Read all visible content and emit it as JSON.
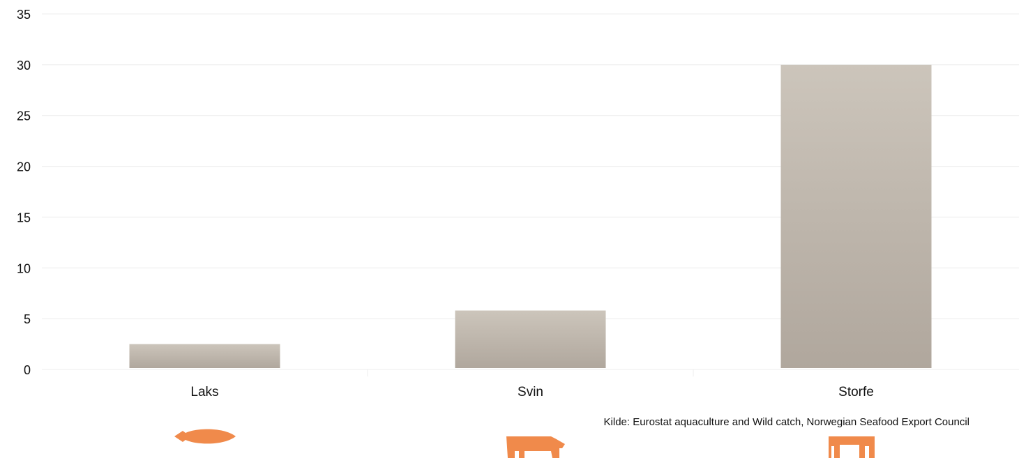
{
  "chart_data": {
    "type": "bar",
    "categories": [
      "Laks",
      "Svin",
      "Storfe"
    ],
    "values": [
      2.5,
      5.8,
      30
    ],
    "ylim": [
      0,
      35
    ],
    "yticks": [
      0,
      5,
      10,
      15,
      20,
      25,
      30,
      35
    ],
    "grid": true,
    "legend": "none",
    "icons": [
      "salmon-icon",
      "pig-icon",
      "cow-icon"
    ]
  },
  "source": "Kilde: Eurostat aquaculture and Wild catch, Norwegian Seafood Export Council",
  "colors": {
    "bar_top": "#ccc5bb",
    "bar_bottom": "#b0a79d",
    "icon": "#f08a4b",
    "grid": "#ececec"
  }
}
